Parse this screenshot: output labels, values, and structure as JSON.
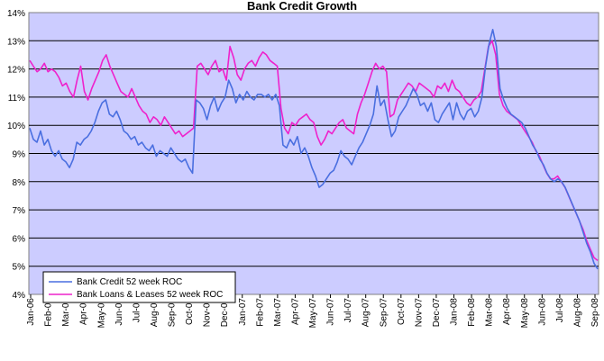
{
  "chart_data": {
    "type": "line",
    "title": "Bank Credit Growth",
    "xlabel": "",
    "ylabel": "",
    "ylim": [
      4,
      14
    ],
    "y_ticks": [
      "4%",
      "5%",
      "6%",
      "7%",
      "8%",
      "9%",
      "10%",
      "11%",
      "12%",
      "13%",
      "14%"
    ],
    "grid": true,
    "legend_position": "bottom-left",
    "plot_background": "#ccccff",
    "x_labels": [
      "Jan-06",
      "Feb-06",
      "Mar-06",
      "Apr-06",
      "May-06",
      "Jun-06",
      "Jul-06",
      "Aug-06",
      "Sep-06",
      "Oct-06",
      "Nov-06",
      "Dec-06",
      "Jan-07",
      "Feb-07",
      "Mar-07",
      "Apr-07",
      "May-07",
      "Jun-07",
      "Jul-07",
      "Aug-07",
      "Sep-07",
      "Oct-07",
      "Nov-07",
      "Dec-07",
      "Jan-08",
      "Feb-08",
      "Mar-08",
      "Apr-08",
      "May-08",
      "Jun-08",
      "Jul-08",
      "Aug-08",
      "Sep-08"
    ],
    "series": [
      {
        "name": "Bank Credit 52 week ROC",
        "color": "#4a6fe0",
        "values": [
          9.9,
          9.5,
          9.4,
          9.8,
          9.3,
          9.5,
          9.1,
          8.9,
          9.1,
          8.8,
          8.7,
          8.5,
          8.8,
          9.4,
          9.3,
          9.5,
          9.6,
          9.8,
          10.1,
          10.5,
          10.8,
          10.9,
          10.4,
          10.3,
          10.5,
          10.2,
          9.8,
          9.7,
          9.5,
          9.6,
          9.3,
          9.4,
          9.2,
          9.1,
          9.3,
          8.9,
          9.1,
          9.0,
          8.9,
          9.2,
          9.0,
          8.8,
          8.7,
          8.8,
          8.5,
          8.3,
          10.9,
          10.8,
          10.6,
          10.2,
          10.7,
          11.0,
          10.5,
          10.8,
          11.0,
          11.6,
          11.3,
          10.8,
          11.1,
          10.9,
          11.2,
          11.0,
          10.9,
          11.1,
          11.1,
          11.0,
          11.1,
          10.9,
          11.1,
          10.7,
          9.3,
          9.2,
          9.5,
          9.3,
          9.6,
          9.0,
          9.2,
          8.9,
          8.5,
          8.2,
          7.8,
          7.9,
          8.1,
          8.3,
          8.4,
          8.7,
          9.1,
          8.9,
          8.8,
          8.6,
          8.9,
          9.2,
          9.4,
          9.7,
          10.0,
          10.4,
          11.4,
          10.7,
          10.9,
          10.2,
          9.6,
          9.8,
          10.3,
          10.5,
          10.7,
          11.0,
          11.3,
          11.1,
          10.7,
          10.8,
          10.5,
          10.8,
          10.2,
          10.1,
          10.4,
          10.6,
          10.8,
          10.2,
          10.8,
          10.4,
          10.2,
          10.5,
          10.6,
          10.3,
          10.5,
          11.0,
          12.1,
          12.9,
          13.4,
          12.8,
          11.3,
          10.9,
          10.6,
          10.4,
          10.3,
          10.2,
          10.1,
          9.9,
          9.6,
          9.3,
          9.1,
          8.8,
          8.6,
          8.3,
          8.1,
          8.0,
          8.1,
          8.0,
          7.8,
          7.5,
          7.2,
          6.9,
          6.6,
          6.2,
          5.8,
          5.5,
          5.1,
          4.9
        ]
      },
      {
        "name": "Bank Loans & Leases 52 week ROC",
        "color": "#ee22cc",
        "values": [
          12.3,
          12.1,
          11.9,
          12.0,
          12.2,
          11.9,
          12.0,
          11.9,
          11.7,
          11.4,
          11.5,
          11.2,
          11.0,
          11.6,
          12.1,
          11.2,
          10.9,
          11.3,
          11.6,
          11.9,
          12.3,
          12.5,
          12.1,
          11.8,
          11.5,
          11.2,
          11.1,
          11.0,
          11.3,
          11.0,
          10.7,
          10.5,
          10.4,
          10.1,
          10.3,
          10.2,
          10.0,
          10.3,
          10.1,
          9.9,
          9.7,
          9.8,
          9.6,
          9.7,
          9.8,
          9.9,
          12.1,
          12.2,
          12.0,
          11.8,
          12.1,
          12.3,
          11.9,
          12.0,
          11.6,
          12.8,
          12.4,
          11.8,
          11.6,
          12.0,
          12.2,
          12.3,
          12.1,
          12.4,
          12.6,
          12.5,
          12.3,
          12.2,
          12.1,
          10.6,
          9.9,
          9.7,
          10.1,
          10.0,
          10.2,
          10.3,
          10.4,
          10.2,
          10.1,
          9.6,
          9.3,
          9.5,
          9.8,
          9.7,
          9.9,
          10.1,
          10.2,
          9.9,
          9.8,
          9.7,
          10.4,
          10.8,
          11.1,
          11.5,
          11.9,
          12.2,
          12.0,
          12.1,
          11.9,
          10.3,
          10.4,
          10.9,
          11.1,
          11.3,
          11.5,
          11.4,
          11.2,
          11.5,
          11.4,
          11.3,
          11.2,
          11.0,
          11.4,
          11.3,
          11.5,
          11.2,
          11.6,
          11.3,
          11.2,
          11.0,
          10.8,
          10.7,
          10.9,
          11.0,
          11.2,
          12.0,
          12.8,
          13.0,
          12.5,
          11.1,
          10.7,
          10.5,
          10.4,
          10.3,
          10.2,
          10.0,
          9.8,
          9.6,
          9.4,
          9.1,
          8.9,
          8.6,
          8.3,
          8.1,
          8.1,
          8.2,
          8.0,
          7.8,
          7.5,
          7.2,
          6.9,
          6.6,
          6.3,
          5.9,
          5.6,
          5.3,
          5.2
        ]
      }
    ]
  }
}
